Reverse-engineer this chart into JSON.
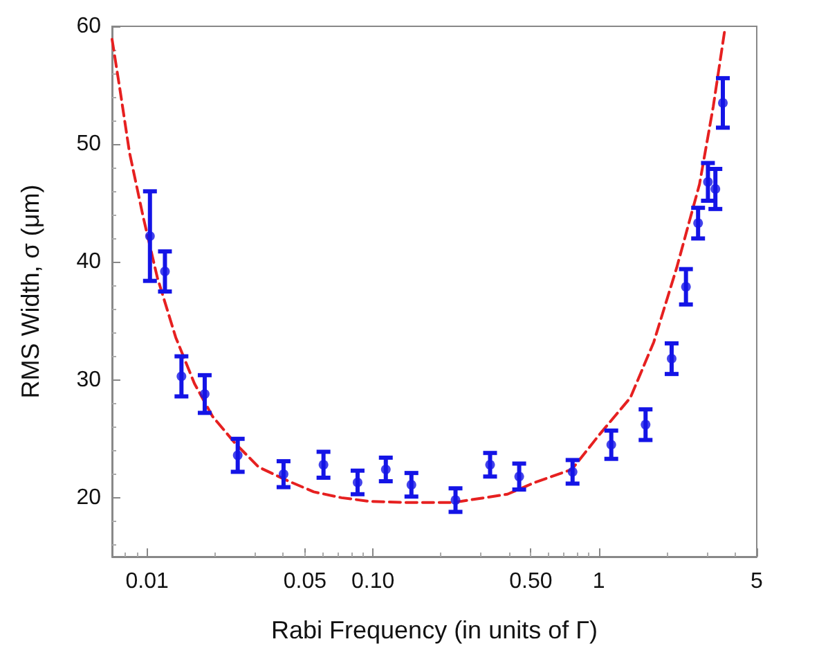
{
  "chart_data": {
    "type": "scatter",
    "xlabel": "Rabi Frequency (in units of Γ)",
    "ylabel": "RMS Width, σ (μm)",
    "log": "x",
    "grid": false,
    "xlim": [
      0.007,
      5
    ],
    "xticks": [
      0.01,
      {
        "value": 0.05,
        "label": "0.05"
      },
      {
        "value": 0.1,
        "label": "0.10"
      },
      {
        "value": 0.5,
        "label": "0.50"
      },
      1,
      5
    ],
    "ylim": [
      15,
      60
    ],
    "yticks": [
      20,
      30,
      40,
      50,
      60
    ],
    "series": [
      {
        "color": "#1414e6",
        "marker": "circle",
        "x": [
          0.0103,
          0.012,
          0.0142,
          0.018,
          0.0252,
          0.0402,
          0.0604,
          0.0855,
          0.114,
          0.148,
          0.232,
          0.33,
          0.444,
          0.765,
          1.135,
          1.61,
          2.1,
          2.43,
          2.75,
          3.04,
          3.28,
          3.54
        ],
        "values": [
          42.2,
          39.2,
          30.3,
          28.8,
          23.6,
          22.0,
          22.8,
          21.3,
          22.4,
          21.1,
          19.8,
          22.8,
          21.8,
          22.2,
          24.5,
          26.2,
          31.8,
          37.9,
          43.3,
          46.8,
          46.2,
          53.5
        ],
        "errors": [
          3.8,
          1.7,
          1.7,
          1.6,
          1.4,
          1.1,
          1.1,
          1.0,
          1.0,
          1.0,
          1.0,
          1.0,
          1.1,
          1.0,
          1.2,
          1.3,
          1.3,
          1.5,
          1.3,
          1.6,
          1.7,
          2.1
        ]
      },
      {
        "type": "line",
        "color": "#e62020",
        "line_style": "dashed",
        "marker": "none",
        "x": [
          0.007,
          0.00762,
          0.00836,
          0.00962,
          0.0111,
          0.0134,
          0.0162,
          0.0195,
          0.0246,
          0.0312,
          0.0413,
          0.0547,
          0.0726,
          0.0962,
          0.14,
          0.224,
          0.246,
          0.394,
          0.521,
          0.759,
          1.0,
          1.38,
          1.75,
          2.21,
          2.79,
          3.21,
          3.61
        ],
        "values": [
          58.9,
          54.4,
          49.3,
          43.8,
          38.7,
          33.6,
          29.7,
          26.9,
          24.6,
          22.6,
          21.5,
          20.5,
          20.0,
          19.7,
          19.6,
          19.6,
          19.7,
          20.3,
          21.3,
          22.4,
          25.3,
          28.5,
          33.2,
          39.5,
          46.6,
          53.2,
          59.7
        ]
      }
    ]
  }
}
